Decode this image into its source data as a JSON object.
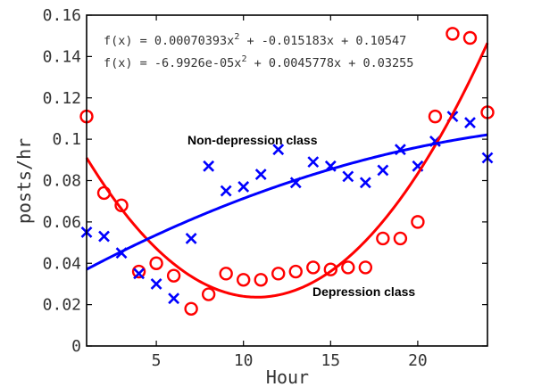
{
  "chart_data": {
    "type": "scatter",
    "xlabel": "Hour",
    "ylabel": "posts/hr",
    "xlim": [
      1,
      24
    ],
    "ylim": [
      0,
      0.16
    ],
    "xticks": [
      5,
      10,
      15,
      20
    ],
    "xtick_labels": [
      "5",
      "10",
      "15",
      "20"
    ],
    "yticks": [
      0,
      0.02,
      0.04,
      0.06,
      0.08,
      0.1,
      0.12,
      0.14,
      0.16
    ],
    "ytick_labels": [
      "0",
      "0.02",
      "0.04",
      "0.06",
      "0.08",
      "0.1",
      "0.12",
      "0.14",
      "0.16"
    ],
    "grid": false,
    "equations": [
      {
        "text": "f(x) = 0.00070393x",
        "sup": "2",
        "rest": " + -0.015183x + 0.10547"
      },
      {
        "text": "f(x) = -6.9926e-05x",
        "sup": "2",
        "rest": " + 0.0045778x + 0.03255"
      }
    ],
    "series": [
      {
        "name": "Depression class",
        "color": "#ff0000",
        "marker": "circle",
        "x": [
          1,
          2,
          3,
          4,
          5,
          6,
          7,
          8,
          9,
          10,
          11,
          12,
          13,
          14,
          15,
          16,
          17,
          18,
          19,
          20,
          21,
          22,
          23,
          24
        ],
        "y": [
          0.111,
          0.074,
          0.068,
          0.036,
          0.04,
          0.034,
          0.018,
          0.025,
          0.035,
          0.032,
          0.032,
          0.035,
          0.036,
          0.038,
          0.037,
          0.038,
          0.038,
          0.052,
          0.052,
          0.06,
          0.111,
          0.151,
          0.149,
          0.113
        ],
        "fit": [
          0.00070393,
          -0.015183,
          0.10547
        ]
      },
      {
        "name": "Non-depression class",
        "color": "#0000ff",
        "marker": "x",
        "x": [
          1,
          2,
          3,
          4,
          5,
          6,
          7,
          8,
          9,
          10,
          11,
          12,
          13,
          14,
          15,
          16,
          17,
          18,
          19,
          20,
          21,
          22,
          23,
          24
        ],
        "y": [
          0.055,
          0.053,
          0.045,
          0.035,
          0.03,
          0.023,
          0.052,
          0.087,
          0.075,
          0.077,
          0.083,
          0.095,
          0.079,
          0.089,
          0.087,
          0.082,
          0.079,
          0.085,
          0.095,
          0.087,
          0.099,
          0.111,
          0.108,
          0.091
        ],
        "fit": [
          -6.9926e-05,
          0.0045778,
          0.03255
        ]
      }
    ]
  }
}
